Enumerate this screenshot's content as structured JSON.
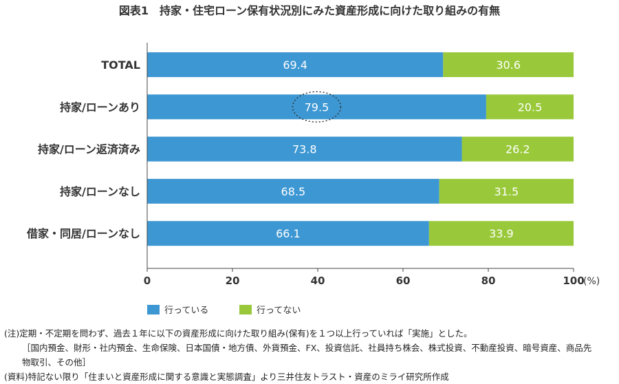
{
  "chart_data": {
    "type": "bar",
    "stacked": true,
    "orientation": "horizontal",
    "title": "図表1　持家・住宅ローン保有状況別にみた資産形成に向けた取り組みの有無",
    "categories": [
      "TOTAL",
      "持家/ローンあり",
      "持家/ローン返済済み",
      "持家/ローンなし",
      "借家・同居/ローンなし"
    ],
    "series": [
      {
        "name": "行っている",
        "color": "#3d97d3",
        "values": [
          69.4,
          79.5,
          73.8,
          68.5,
          66.1
        ]
      },
      {
        "name": "行ってない",
        "color": "#99c93a",
        "values": [
          30.6,
          20.5,
          26.2,
          31.5,
          33.9
        ]
      }
    ],
    "xlim": [
      0,
      100
    ],
    "xticks": [
      "0",
      "20",
      "40",
      "60",
      "80",
      "100"
    ],
    "xunit": "(%)",
    "grid": false,
    "legend": "bottom",
    "annotation": {
      "type": "dashed-circle",
      "target": "79.5"
    }
  },
  "notes": [
    "(注)定期・不定期を問わず、過去１年に以下の資産形成に向けた取り組み(保有)を１つ以上行っていれば「実施」とした。",
    "［国内預金、財形・社内預金、生命保険、日本国債・地方債、外貨預金、FX、投資信託、社員持ち株会、株式投資、不動産投資、暗号資産、商品先",
    "物取引、その他］",
    "(資料)特記ない限り「住まいと資産形成に関する意識と実態調査」より三井住友トラスト・資産のミライ研究所作成"
  ]
}
